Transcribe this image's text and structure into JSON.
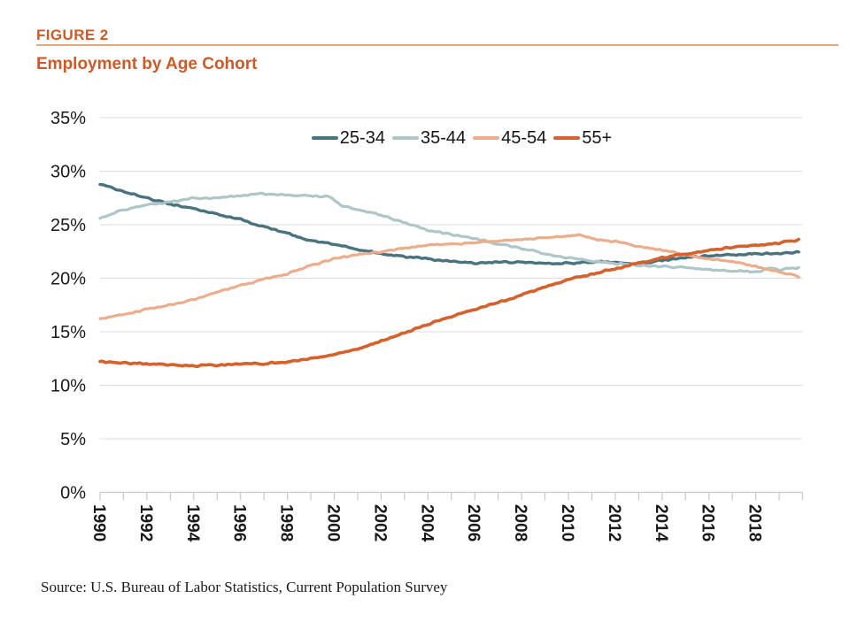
{
  "header": {
    "figure_label": "FIGURE 2",
    "title": "Employment by Age Cohort"
  },
  "source_note": "Source: U.S. Bureau of Labor Statistics, Current Population Survey",
  "colors": {
    "accent_orange": "#CD5A28",
    "header_rule": "#EAA77C",
    "gridline": "#DCDCDC",
    "axis_line": "#C8C8C8",
    "tick_label": "#1a1a1a"
  },
  "chart_data": {
    "type": "line",
    "title": "Employment by Age Cohort",
    "x_range": [
      1990,
      2020
    ],
    "y_range": [
      0,
      35
    ],
    "y_unit": "%",
    "grid": true,
    "legend_position": "top-center",
    "y_ticks": [
      0,
      5,
      10,
      15,
      20,
      25,
      30,
      35
    ],
    "y_tick_labels": [
      "0%",
      "5%",
      "10%",
      "15%",
      "20%",
      "25%",
      "30%",
      "35%"
    ],
    "x_tick_labels": [
      "1990",
      "1992",
      "1994",
      "1996",
      "1998",
      "2000",
      "2002",
      "2004",
      "2006",
      "2008",
      "2010",
      "2012",
      "2014",
      "2016",
      "2018"
    ],
    "x_minor_tick_interval": 1,
    "series": [
      {
        "name": "25-34",
        "color": "#4A7380",
        "points": [
          [
            1990,
            28.8
          ],
          [
            1991,
            28.1
          ],
          [
            1992,
            27.5
          ],
          [
            1993,
            26.9
          ],
          [
            1994,
            26.5
          ],
          [
            1995,
            26.0
          ],
          [
            1996,
            25.5
          ],
          [
            1997,
            24.8
          ],
          [
            1998,
            24.2
          ],
          [
            1999,
            23.5
          ],
          [
            2000,
            23.2
          ],
          [
            2001,
            22.7
          ],
          [
            2002,
            22.3
          ],
          [
            2003,
            22.0
          ],
          [
            2004,
            21.8
          ],
          [
            2005,
            21.6
          ],
          [
            2006,
            21.4
          ],
          [
            2007,
            21.5
          ],
          [
            2008,
            21.5
          ],
          [
            2009,
            21.4
          ],
          [
            2010,
            21.4
          ],
          [
            2011,
            21.5
          ],
          [
            2012,
            21.5
          ],
          [
            2013,
            21.3
          ],
          [
            2014,
            21.7
          ],
          [
            2015,
            21.9
          ],
          [
            2016,
            22.1
          ],
          [
            2017,
            22.2
          ],
          [
            2018,
            22.3
          ],
          [
            2019,
            22.3
          ],
          [
            2019.9,
            22.5
          ]
        ]
      },
      {
        "name": "35-44",
        "color": "#AFC6C8",
        "points": [
          [
            1990,
            25.6
          ],
          [
            1991,
            26.4
          ],
          [
            1992,
            26.9
          ],
          [
            1993,
            27.1
          ],
          [
            1994,
            27.5
          ],
          [
            1995,
            27.5
          ],
          [
            1996,
            27.7
          ],
          [
            1997,
            27.9
          ],
          [
            1998,
            27.8
          ],
          [
            1999,
            27.7
          ],
          [
            1999.8,
            27.6
          ],
          [
            2000.3,
            26.8
          ],
          [
            2001,
            26.4
          ],
          [
            2002,
            25.9
          ],
          [
            2003,
            25.2
          ],
          [
            2004,
            24.5
          ],
          [
            2005,
            24.1
          ],
          [
            2006,
            23.7
          ],
          [
            2007,
            23.2
          ],
          [
            2008,
            22.8
          ],
          [
            2009,
            22.3
          ],
          [
            2010,
            21.9
          ],
          [
            2011,
            21.6
          ],
          [
            2012,
            21.4
          ],
          [
            2013,
            21.2
          ],
          [
            2014,
            21.1
          ],
          [
            2015,
            21.0
          ],
          [
            2016,
            20.8
          ],
          [
            2017,
            20.7
          ],
          [
            2018,
            20.6
          ],
          [
            2018.6,
            20.9
          ],
          [
            2019,
            20.8
          ],
          [
            2019.9,
            21.0
          ]
        ]
      },
      {
        "name": "45-54",
        "color": "#EDAD8C",
        "points": [
          [
            1990,
            16.2
          ],
          [
            1991,
            16.6
          ],
          [
            1992,
            17.1
          ],
          [
            1993,
            17.5
          ],
          [
            1994,
            18.0
          ],
          [
            1995,
            18.7
          ],
          [
            1996,
            19.3
          ],
          [
            1997,
            19.9
          ],
          [
            1998,
            20.4
          ],
          [
            1999,
            21.2
          ],
          [
            2000,
            21.8
          ],
          [
            2001,
            22.2
          ],
          [
            2002,
            22.5
          ],
          [
            2003,
            22.8
          ],
          [
            2004,
            23.1
          ],
          [
            2005,
            23.2
          ],
          [
            2006,
            23.3
          ],
          [
            2007,
            23.5
          ],
          [
            2008,
            23.6
          ],
          [
            2009,
            23.8
          ],
          [
            2010,
            24.0
          ],
          [
            2010.5,
            24.0
          ],
          [
            2011,
            23.7
          ],
          [
            2012,
            23.4
          ],
          [
            2013,
            23.0
          ],
          [
            2014,
            22.6
          ],
          [
            2015,
            22.2
          ],
          [
            2016,
            21.8
          ],
          [
            2017,
            21.6
          ],
          [
            2018,
            21.1
          ],
          [
            2019,
            20.6
          ],
          [
            2019.9,
            20.1
          ]
        ]
      },
      {
        "name": "55+",
        "color": "#D5612C",
        "points": [
          [
            1990,
            12.2
          ],
          [
            1991,
            12.1
          ],
          [
            1992,
            12.0
          ],
          [
            1993,
            11.9
          ],
          [
            1994,
            11.8
          ],
          [
            1995,
            11.9
          ],
          [
            1996,
            12.0
          ],
          [
            1997,
            12.0
          ],
          [
            1998,
            12.2
          ],
          [
            1999,
            12.5
          ],
          [
            2000,
            12.9
          ],
          [
            2001,
            13.4
          ],
          [
            2002,
            14.1
          ],
          [
            2003,
            14.9
          ],
          [
            2004,
            15.7
          ],
          [
            2005,
            16.4
          ],
          [
            2006,
            17.1
          ],
          [
            2007,
            17.8
          ],
          [
            2008,
            18.4
          ],
          [
            2009,
            19.2
          ],
          [
            2010,
            19.9
          ],
          [
            2011,
            20.4
          ],
          [
            2012,
            20.9
          ],
          [
            2013,
            21.4
          ],
          [
            2014,
            21.9
          ],
          [
            2015,
            22.3
          ],
          [
            2016,
            22.6
          ],
          [
            2017,
            22.9
          ],
          [
            2018,
            23.1
          ],
          [
            2019,
            23.3
          ],
          [
            2019.9,
            23.6
          ]
        ]
      }
    ]
  }
}
